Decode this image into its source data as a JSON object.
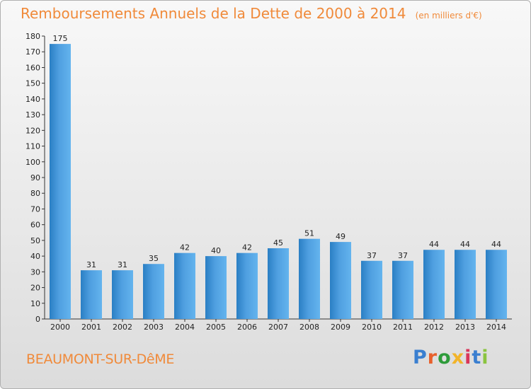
{
  "title": "Remboursements Annuels de la Dette de 2000 à 2014",
  "unit": "(en milliers d'€)",
  "commune": "BEAUMONT-SUR-DêME",
  "logo": {
    "text": "Proxiti",
    "colors": [
      "#3a7fd0",
      "#e8602c",
      "#2e9b3a",
      "#f2b42a",
      "#d9365a",
      "#3a7fd0",
      "#8ac43f"
    ]
  },
  "colors": {
    "title": "#f08a3a",
    "bar_light": "#5aaeea",
    "bar_dark": "#2a7fc4"
  },
  "chart_data": {
    "type": "bar",
    "title": "Remboursements Annuels de la Dette de 2000 à 2014",
    "categories": [
      "2000",
      "2001",
      "2002",
      "2003",
      "2004",
      "2005",
      "2006",
      "2007",
      "2008",
      "2009",
      "2010",
      "2011",
      "2012",
      "2013",
      "2014"
    ],
    "values": [
      175,
      31,
      31,
      35,
      42,
      40,
      42,
      45,
      51,
      49,
      37,
      37,
      44,
      44,
      44
    ],
    "ylim": [
      0,
      180
    ],
    "yticks": [
      0,
      10,
      20,
      30,
      40,
      50,
      60,
      70,
      80,
      90,
      100,
      110,
      120,
      130,
      140,
      150,
      160,
      170,
      180
    ],
    "grid": false,
    "xlabel": "",
    "ylabel": ""
  }
}
